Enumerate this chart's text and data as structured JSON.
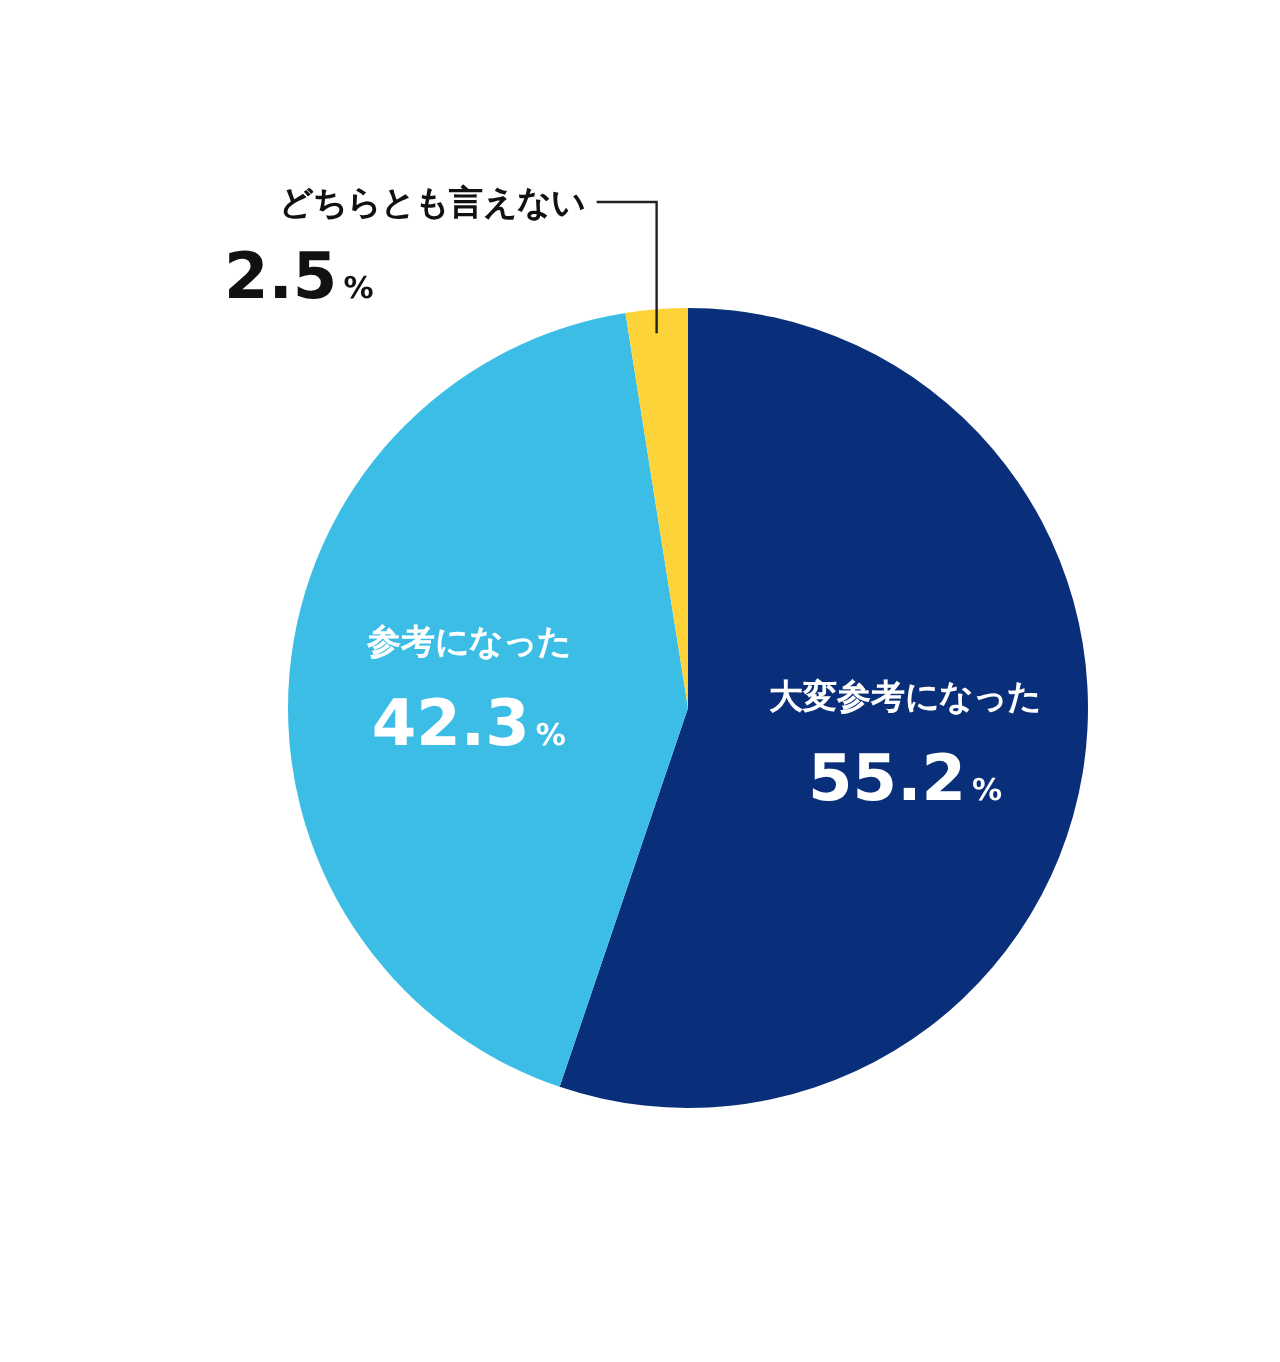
{
  "chart_data": {
    "type": "pie",
    "categories": [
      "大変参考になった",
      "参考になった",
      "どちらとも言えない"
    ],
    "values": [
      55.2,
      42.3,
      2.5
    ],
    "colors": [
      "#0a2f7a",
      "#3bbde6",
      "#fdd33a"
    ],
    "value_labels": [
      "55.2%",
      "42.3%",
      "2.5%"
    ]
  }
}
